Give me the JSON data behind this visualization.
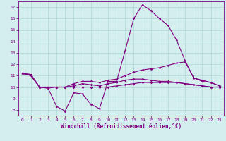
{
  "x": [
    0,
    1,
    2,
    3,
    4,
    5,
    6,
    7,
    8,
    9,
    10,
    11,
    12,
    13,
    14,
    15,
    16,
    17,
    18,
    19,
    20,
    21,
    22,
    23
  ],
  "line1": [
    11.2,
    11.1,
    10.0,
    9.9,
    8.3,
    7.9,
    9.5,
    9.4,
    8.5,
    8.1,
    10.5,
    10.5,
    13.2,
    16.0,
    17.2,
    16.7,
    16.0,
    15.4,
    14.1,
    12.3,
    10.8,
    10.5,
    10.4,
    10.1
  ],
  "line2": [
    11.2,
    11.1,
    10.0,
    9.9,
    10.0,
    10.0,
    10.3,
    10.5,
    10.5,
    10.4,
    10.6,
    10.7,
    11.0,
    11.3,
    11.5,
    11.6,
    11.7,
    11.9,
    12.1,
    12.2,
    10.8,
    10.6,
    10.4,
    10.1
  ],
  "line3": [
    11.2,
    11.0,
    10.0,
    10.0,
    10.0,
    10.0,
    10.0,
    10.0,
    10.0,
    10.0,
    10.0,
    10.1,
    10.2,
    10.3,
    10.4,
    10.4,
    10.4,
    10.4,
    10.4,
    10.3,
    10.2,
    10.1,
    10.0,
    10.0
  ],
  "line4": [
    11.2,
    11.0,
    10.0,
    10.0,
    10.0,
    10.0,
    10.1,
    10.3,
    10.2,
    10.1,
    10.3,
    10.4,
    10.6,
    10.7,
    10.7,
    10.6,
    10.5,
    10.5,
    10.4,
    10.3,
    10.2,
    10.1,
    10.0,
    10.0
  ],
  "color": "#800080",
  "bg_color": "#d4eeee",
  "grid_color": "#b0d8d8",
  "xlabel": "Windchill (Refroidissement éolien,°C)",
  "ylabel_ticks": [
    8,
    9,
    10,
    11,
    12,
    13,
    14,
    15,
    16,
    17
  ],
  "xlim": [
    -0.5,
    23.5
  ],
  "ylim": [
    7.5,
    17.5
  ]
}
